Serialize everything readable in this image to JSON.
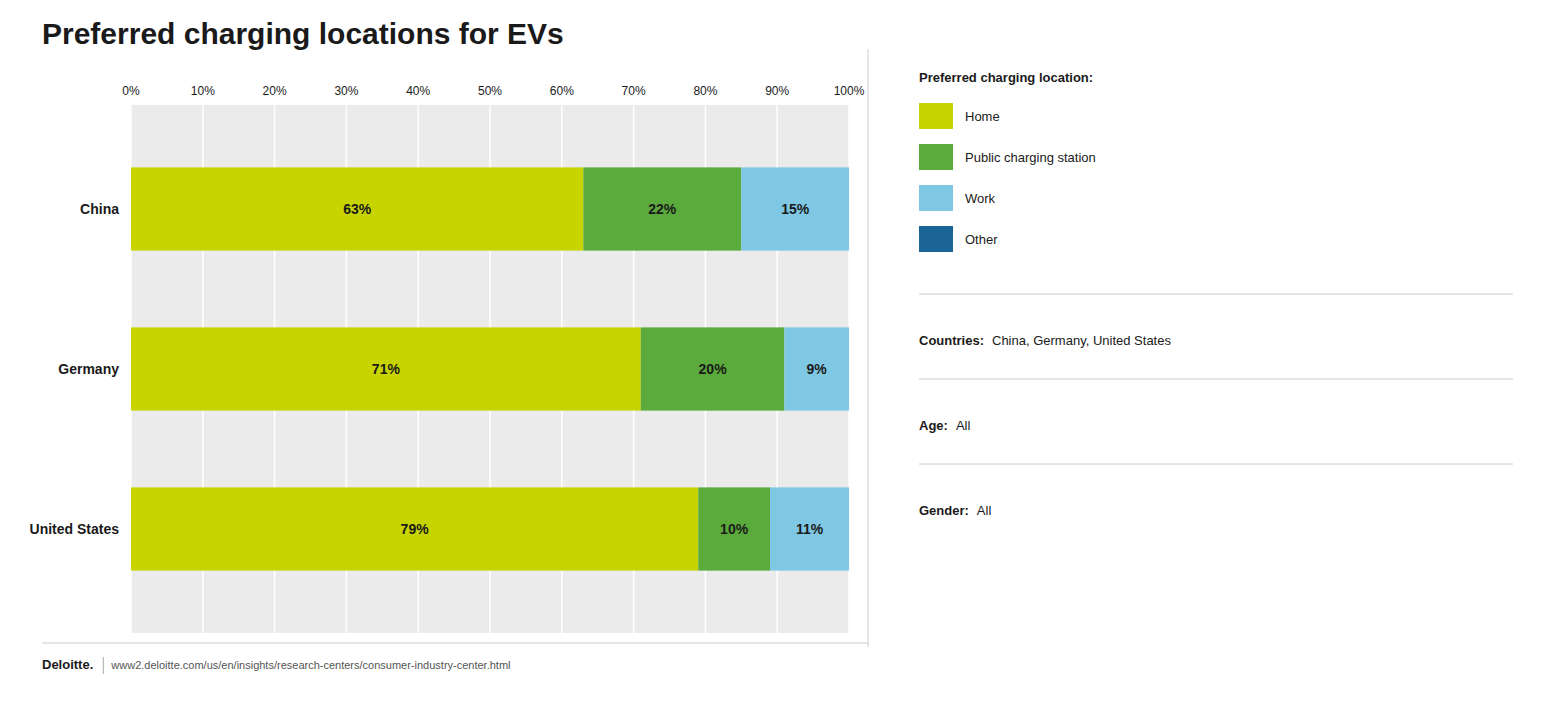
{
  "chart_data": {
    "type": "bar",
    "orientation": "horizontal",
    "stacked": true,
    "data_labels": true,
    "grid": true,
    "legend": "right",
    "title": "Preferred charging locations for EVs",
    "legend_title": "Preferred charging location:",
    "categories": [
      "United States",
      "Germany",
      "China"
    ],
    "series": [
      {
        "name": "Home",
        "color": "#c8d400",
        "values": [
          79,
          71,
          63
        ],
        "value_labels": [
          "79%",
          "71%",
          "63%"
        ]
      },
      {
        "name": "Public charging station",
        "color": "#5aaa3c",
        "values": [
          10,
          20,
          22
        ],
        "value_labels": [
          "10%",
          "20%",
          "22%"
        ]
      },
      {
        "name": "Work",
        "color": "#7ec8e3",
        "values": [
          11,
          9,
          15
        ],
        "value_labels": [
          "11%",
          "9%",
          "15%"
        ]
      },
      {
        "name": "Other",
        "color": "#1a6496",
        "values": [
          0,
          0,
          0
        ]
      }
    ],
    "xlim": [
      0,
      100
    ],
    "xticks": [
      {
        "value": 0,
        "label": "0%"
      },
      {
        "value": 10,
        "label": "10%"
      },
      {
        "value": 20,
        "label": "20%"
      },
      {
        "value": 30,
        "label": "30%"
      },
      {
        "value": 40,
        "label": "40%"
      },
      {
        "value": 50,
        "label": "50%"
      },
      {
        "value": 60,
        "label": "60%"
      },
      {
        "value": 70,
        "label": "70%"
      },
      {
        "value": 80,
        "label": "80%"
      },
      {
        "value": 90,
        "label": "90%"
      },
      {
        "value": 100,
        "label": "100%"
      }
    ],
    "annotations": [
      {
        "label": "Countries:",
        "text": "China, Germany, United States"
      },
      {
        "label": "Age:",
        "text": "All"
      },
      {
        "label": "Gender:",
        "text": "All"
      }
    ],
    "source": {
      "label": "Deloitte.",
      "text": "www2.deloitte.com/us/en/insights/research-centers/consumer-industry-center.html"
    }
  }
}
